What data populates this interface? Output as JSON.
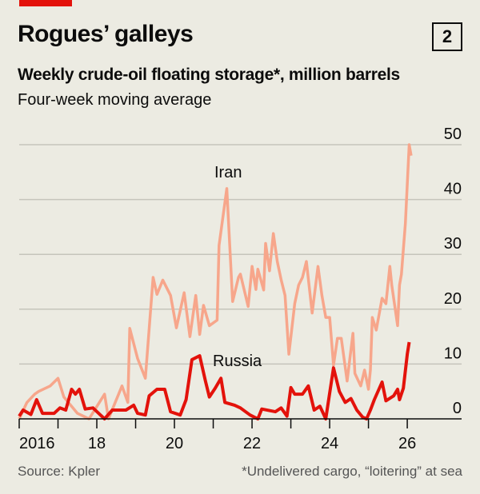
{
  "header": {
    "title": "Rogues’ galleys",
    "chart_number": "2",
    "subtitle": "Weekly crude-oil floating storage*, million barrels",
    "subsubtitle": "Four-week moving average"
  },
  "footer": {
    "source": "Source: Kpler",
    "note": "*Undelivered cargo, “loitering” at sea"
  },
  "chart_data": {
    "type": "line",
    "title": "Weekly crude-oil floating storage*, million barrels",
    "subtitle": "Four-week moving average",
    "xlim": [
      2016,
      2027.4
    ],
    "ylim": [
      0,
      50
    ],
    "x_ticks": [
      {
        "value": 2016,
        "label": "2016"
      },
      {
        "value": 2018,
        "label": "18"
      },
      {
        "value": 2020,
        "label": "20"
      },
      {
        "value": 2022,
        "label": "22"
      },
      {
        "value": 2024,
        "label": "24"
      },
      {
        "value": 2026,
        "label": "26"
      }
    ],
    "y_ticks": [
      0,
      10,
      20,
      30,
      40,
      50
    ],
    "y_axis_side": "right",
    "grid": true,
    "series": [
      {
        "name": "Iran",
        "color": "#F7A68B",
        "points": [
          [
            2016.0,
            0
          ],
          [
            2016.2,
            3
          ],
          [
            2016.4,
            4.5
          ],
          [
            2016.5,
            5
          ],
          [
            2016.8,
            6
          ],
          [
            2017.0,
            7.4
          ],
          [
            2017.15,
            4
          ],
          [
            2017.5,
            1
          ],
          [
            2017.8,
            0
          ],
          [
            2018.2,
            4.5
          ],
          [
            2018.3,
            0
          ],
          [
            2018.65,
            6
          ],
          [
            2018.8,
            3
          ],
          [
            2018.85,
            16.5
          ],
          [
            2019.05,
            11
          ],
          [
            2019.25,
            7.4
          ],
          [
            2019.45,
            25.8
          ],
          [
            2019.55,
            22.7
          ],
          [
            2019.7,
            25.3
          ],
          [
            2019.9,
            22.5
          ],
          [
            2020.05,
            16.6
          ],
          [
            2020.25,
            23
          ],
          [
            2020.4,
            15
          ],
          [
            2020.55,
            22.5
          ],
          [
            2020.65,
            15.4
          ],
          [
            2020.75,
            20.7
          ],
          [
            2020.9,
            17
          ],
          [
            2021.1,
            18
          ],
          [
            2021.15,
            31.6
          ],
          [
            2021.35,
            42
          ],
          [
            2021.5,
            21.4
          ],
          [
            2021.65,
            25.8
          ],
          [
            2021.7,
            26.4
          ],
          [
            2021.9,
            20.5
          ],
          [
            2022.0,
            27.8
          ],
          [
            2022.1,
            23.6
          ],
          [
            2022.15,
            27.3
          ],
          [
            2022.3,
            23.5
          ],
          [
            2022.35,
            32
          ],
          [
            2022.45,
            27
          ],
          [
            2022.55,
            33.8
          ],
          [
            2022.65,
            28.7
          ],
          [
            2022.75,
            25.4
          ],
          [
            2022.85,
            22.5
          ],
          [
            2022.95,
            11.8
          ],
          [
            2023.1,
            21
          ],
          [
            2023.2,
            24.4
          ],
          [
            2023.3,
            25.8
          ],
          [
            2023.4,
            28.7
          ],
          [
            2023.55,
            19.3
          ],
          [
            2023.7,
            27.8
          ],
          [
            2023.8,
            22.5
          ],
          [
            2023.9,
            18.5
          ],
          [
            2024.0,
            18.5
          ],
          [
            2024.1,
            9.8
          ],
          [
            2024.2,
            14.7
          ],
          [
            2024.3,
            14.7
          ],
          [
            2024.45,
            6.9
          ],
          [
            2024.6,
            15.6
          ],
          [
            2024.65,
            8.3
          ],
          [
            2024.8,
            6
          ],
          [
            2024.9,
            8.9
          ],
          [
            2025.0,
            5.4
          ],
          [
            2025.05,
            8.9
          ],
          [
            2025.1,
            18.5
          ],
          [
            2025.2,
            16.2
          ],
          [
            2025.35,
            22
          ],
          [
            2025.45,
            21
          ],
          [
            2025.55,
            27.8
          ],
          [
            2025.6,
            24.4
          ],
          [
            2025.75,
            17
          ],
          [
            2025.8,
            24.4
          ],
          [
            2025.85,
            26.4
          ],
          [
            2025.95,
            35.6
          ],
          [
            2026.05,
            50
          ],
          [
            2026.1,
            48
          ]
        ]
      },
      {
        "name": "Russia",
        "color": "#E3120B",
        "points": [
          [
            2016.0,
            0.5
          ],
          [
            2016.1,
            1.6
          ],
          [
            2016.3,
            0.8
          ],
          [
            2016.45,
            3.5
          ],
          [
            2016.6,
            1
          ],
          [
            2016.9,
            1
          ],
          [
            2017.05,
            2
          ],
          [
            2017.2,
            1.6
          ],
          [
            2017.35,
            5.4
          ],
          [
            2017.45,
            4.5
          ],
          [
            2017.55,
            5.4
          ],
          [
            2017.7,
            1.8
          ],
          [
            2017.9,
            2
          ],
          [
            2018.2,
            0
          ],
          [
            2018.4,
            1.6
          ],
          [
            2018.75,
            1.6
          ],
          [
            2018.95,
            2.5
          ],
          [
            2019.05,
            1
          ],
          [
            2019.25,
            0.7
          ],
          [
            2019.35,
            4.2
          ],
          [
            2019.55,
            5.4
          ],
          [
            2019.75,
            5.4
          ],
          [
            2019.9,
            1.3
          ],
          [
            2020.15,
            0.7
          ],
          [
            2020.3,
            3.5
          ],
          [
            2020.45,
            10.8
          ],
          [
            2020.65,
            11.5
          ],
          [
            2020.8,
            6.9
          ],
          [
            2020.9,
            4
          ],
          [
            2021.05,
            5.6
          ],
          [
            2021.2,
            7.4
          ],
          [
            2021.3,
            3
          ],
          [
            2021.55,
            2.5
          ],
          [
            2021.7,
            2
          ],
          [
            2021.95,
            0.7
          ],
          [
            2022.15,
            0
          ],
          [
            2022.25,
            1.8
          ],
          [
            2022.6,
            1.3
          ],
          [
            2022.75,
            2
          ],
          [
            2022.9,
            0.5
          ],
          [
            2023.0,
            5.7
          ],
          [
            2023.1,
            4.5
          ],
          [
            2023.3,
            4.5
          ],
          [
            2023.45,
            6
          ],
          [
            2023.6,
            1.6
          ],
          [
            2023.75,
            2.3
          ],
          [
            2023.9,
            0
          ],
          [
            2024.1,
            9.3
          ],
          [
            2024.25,
            5
          ],
          [
            2024.4,
            3
          ],
          [
            2024.55,
            3.7
          ],
          [
            2024.7,
            1.6
          ],
          [
            2024.85,
            0.3
          ],
          [
            2024.95,
            0
          ],
          [
            2025.05,
            1.6
          ],
          [
            2025.15,
            3.5
          ],
          [
            2025.35,
            6.7
          ],
          [
            2025.45,
            3.3
          ],
          [
            2025.65,
            4.2
          ],
          [
            2025.75,
            5.4
          ],
          [
            2025.8,
            3.5
          ],
          [
            2025.9,
            5.6
          ],
          [
            2026.0,
            11.8
          ],
          [
            2026.05,
            14
          ]
        ]
      }
    ]
  }
}
